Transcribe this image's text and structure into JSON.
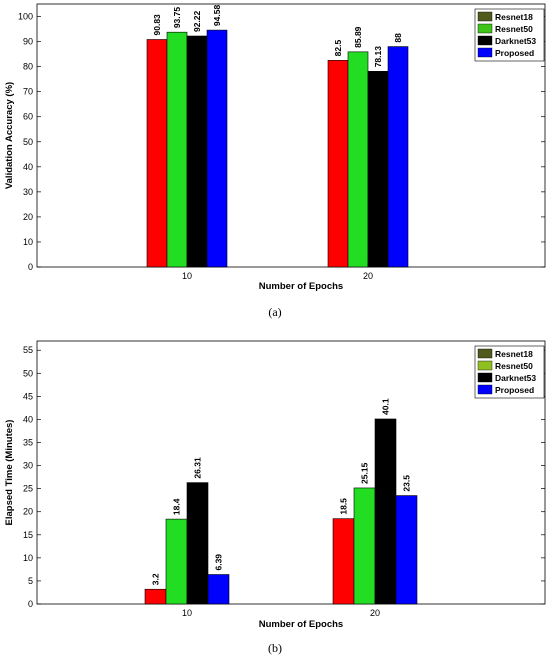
{
  "chart_data": [
    {
      "type": "bar",
      "caption": "(a)",
      "categories": [
        "10",
        "20"
      ],
      "series": [
        {
          "name": "Resnet18",
          "values": [
            90.83,
            82.5
          ],
          "labels": [
            "90.83",
            "82.5"
          ],
          "color": "#ff0000",
          "legend_color": "#4f5a1c"
        },
        {
          "name": "Resnet50",
          "values": [
            93.75,
            85.89
          ],
          "labels": [
            "93.75",
            "85.89"
          ],
          "color": "#22dd22",
          "legend_color": "#3fc41a"
        },
        {
          "name": "Darknet53",
          "values": [
            92.22,
            78.13
          ],
          "labels": [
            "92.22",
            "78.13"
          ],
          "color": "#000000",
          "legend_color": "#000000"
        },
        {
          "name": "Proposed",
          "values": [
            94.58,
            88
          ],
          "labels": [
            "94.58",
            "88"
          ],
          "color": "#0000ff",
          "legend_color": "#0000ff"
        }
      ],
      "xlabel": "Number of Epochs",
      "ylabel": "Validation Accuracy (%)",
      "ylim": [
        0,
        105
      ],
      "yticks": [
        0,
        10,
        20,
        30,
        40,
        50,
        60,
        70,
        80,
        90,
        100
      ],
      "grid": false,
      "legend_position": "top-right"
    },
    {
      "type": "bar",
      "caption": "(b)",
      "categories": [
        "10",
        "20"
      ],
      "series": [
        {
          "name": "Resnet18",
          "values": [
            3.2,
            18.5
          ],
          "labels": [
            "3.2",
            "18.5"
          ],
          "color": "#ff0000",
          "legend_color": "#4f5a1c"
        },
        {
          "name": "Resnet50",
          "values": [
            18.4,
            25.15
          ],
          "labels": [
            "18.4",
            "25.15"
          ],
          "color": "#22dd22",
          "legend_color": "#90c020"
        },
        {
          "name": "Darknet53",
          "values": [
            26.31,
            40.1
          ],
          "labels": [
            "26.31",
            "40.1"
          ],
          "color": "#000000",
          "legend_color": "#000000"
        },
        {
          "name": "Proposed",
          "values": [
            6.39,
            23.5
          ],
          "labels": [
            "6.39",
            "23.5"
          ],
          "color": "#0000ff",
          "legend_color": "#0000ff"
        }
      ],
      "xlabel": "Number of Epochs",
      "ylabel": "Elapsed Time (Minutes)",
      "ylim": [
        0,
        57
      ],
      "yticks": [
        0,
        5,
        10,
        15,
        20,
        25,
        30,
        35,
        40,
        45,
        50,
        55
      ],
      "grid": false,
      "legend_position": "top-right"
    }
  ]
}
